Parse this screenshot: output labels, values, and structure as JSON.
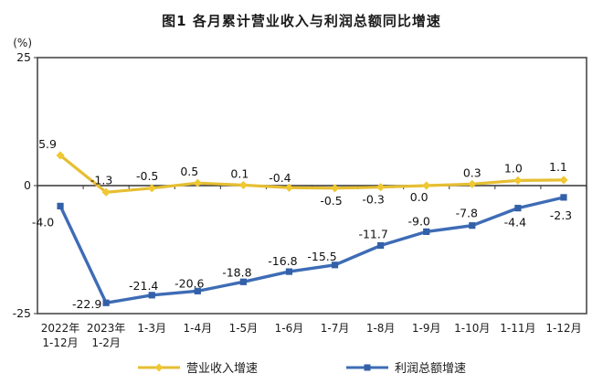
{
  "page": {
    "window_title": "图1 各月累计营业收入与利润总额同比增速"
  },
  "chart_data": {
    "type": "line",
    "title": "图1 各月累计营业收入与利润总额同比增速",
    "xlabel": "",
    "ylabel": "(%)",
    "ylim": [
      -25,
      25
    ],
    "grid": false,
    "legend_position": "bottom",
    "categories": [
      [
        "2022年",
        "1-12月"
      ],
      [
        "2023年",
        "1-2月"
      ],
      [
        "1-3月"
      ],
      [
        "1-4月"
      ],
      [
        "1-5月"
      ],
      [
        "1-6月"
      ],
      [
        "1-7月"
      ],
      [
        "1-8月"
      ],
      [
        "1-9月"
      ],
      [
        "1-10月"
      ],
      [
        "1-11月"
      ],
      [
        "1-12月"
      ]
    ],
    "y_ticks": [
      {
        "v": 25,
        "label": "25"
      },
      {
        "v": 0,
        "label": "0"
      },
      {
        "v": -25,
        "label": "-25"
      }
    ],
    "series": [
      {
        "name": "营业收入增速",
        "color": "#E6BE32",
        "marker_color": "#EFC832",
        "marker": "diamond",
        "values": [
          5.9,
          -1.3,
          -0.5,
          0.5,
          0.1,
          -0.4,
          -0.5,
          -0.3,
          0.0,
          0.3,
          1.0,
          1.1
        ],
        "labels": [
          "5.9",
          "-1.3",
          "-0.5",
          "0.5",
          "0.1",
          "-0.4",
          "-0.5",
          "-0.3",
          "0.0",
          "0.3",
          "1.0",
          "1.1"
        ]
      },
      {
        "name": "利润总额增速",
        "color": "#3E6CB5",
        "marker_color": "#3360A8",
        "marker": "square",
        "values": [
          -4.0,
          -22.9,
          -21.4,
          -20.6,
          -18.8,
          -16.8,
          -15.5,
          -11.7,
          -9.0,
          -7.8,
          -4.4,
          -2.3
        ],
        "labels": [
          "-4.0",
          "-22.9",
          "-21.4",
          "-20.6",
          "-18.8",
          "-16.8",
          "-15.5",
          "-11.7",
          "-9.0",
          "-7.8",
          "-4.4",
          "-2.3"
        ]
      }
    ]
  }
}
